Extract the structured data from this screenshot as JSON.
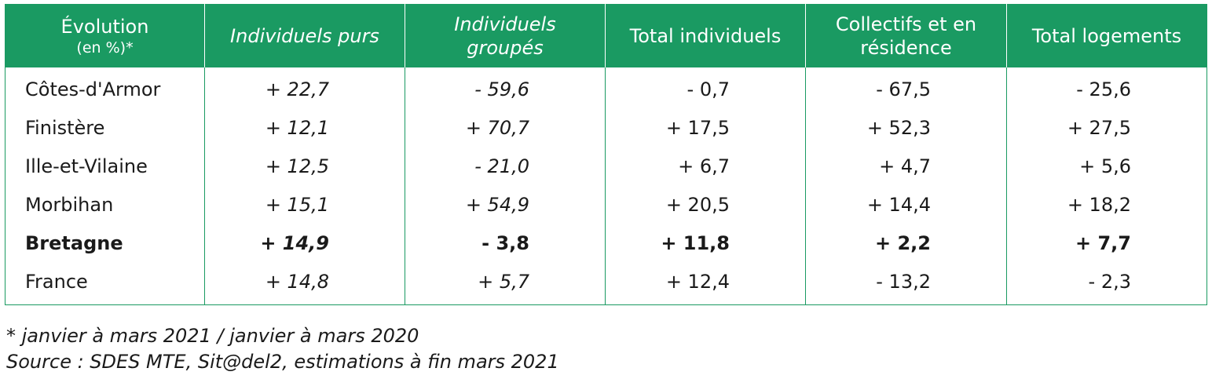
{
  "table": {
    "header": {
      "col0_main": "Évolution",
      "col0_sub": "(en %)*",
      "col1": "Individuels purs",
      "col2_line1": "Individuels",
      "col2_line2": "groupés",
      "col3": "Total individuels",
      "col4_line1": "Collectifs et en",
      "col4_line2": "résidence",
      "col5": "Total logements"
    },
    "rows": [
      {
        "label": "Côtes-d'Armor",
        "values": [
          "+ 22,7",
          "- 59,6",
          "- 0,7",
          "- 67,5",
          "- 25,6"
        ]
      },
      {
        "label": "Finistère",
        "values": [
          "+ 12,1",
          "+ 70,7",
          "+ 17,5",
          "+ 52,3",
          "+ 27,5"
        ]
      },
      {
        "label": "Ille-et-Vilaine",
        "values": [
          "+ 12,5",
          "- 21,0",
          "+ 6,7",
          "+ 4,7",
          "+ 5,6"
        ]
      },
      {
        "label": "Morbihan",
        "values": [
          "+ 15,1",
          "+ 54,9",
          "+ 20,5",
          "+ 14,4",
          "+ 18,2"
        ]
      },
      {
        "label": "Bretagne",
        "values": [
          "+ 14,9",
          "- 3,8",
          "+ 11,8",
          "+ 2,2",
          "+ 7,7"
        ]
      },
      {
        "label": "France",
        "values": [
          "+ 14,8",
          "+ 5,7",
          "+ 12,4",
          "- 13,2",
          "- 2,3"
        ]
      }
    ]
  },
  "notes": {
    "footnote": "* janvier à mars 2021 / janvier à mars 2020",
    "source": "Source : SDES MTE, Sit@del2, estimations à fin mars 2021"
  },
  "colors": {
    "header_bg": "#1a9a62",
    "header_text": "#ffffff",
    "border": "#1a9a62"
  }
}
